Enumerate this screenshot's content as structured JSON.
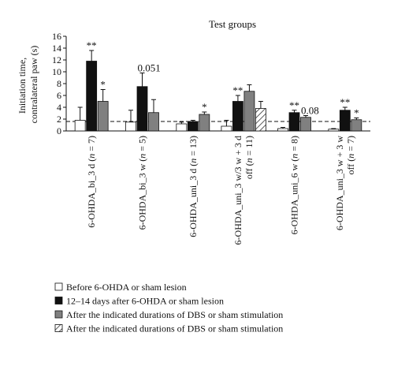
{
  "chart_data": {
    "type": "bar",
    "title": "Test groups",
    "ylabel": "Initiation time,\ncontralateral paw (s)",
    "ylim": [
      0,
      16
    ],
    "yticks": [
      0,
      2,
      4,
      6,
      8,
      10,
      12,
      14,
      16
    ],
    "reference_line": 1.6,
    "categories": [
      "6-OHDA_bi_3 d (n = 7)",
      "6-OHDA_bi_3 w (n = 5)",
      "6-OHDA_uni_3 d (n = 13)",
      "6-OHDA_uni_3 w/3 w + 3 d off (n = 11)",
      "6-OHDA_uni_6 w (n = 8)",
      "6-OHDA_uni_3 w + 3 w off (n = 7)"
    ],
    "series": [
      {
        "name": "Before 6-OHDA or sham lesion",
        "fill": "white",
        "values": [
          1.8,
          1.5,
          1.2,
          0.8,
          0.4,
          0.3
        ],
        "errors": [
          2.2,
          2.0,
          0.3,
          1.0,
          0.2,
          0.1
        ]
      },
      {
        "name": "12–14 days after 6-OHDA or sham lesion",
        "fill": "black",
        "values": [
          11.8,
          7.5,
          1.6,
          5.0,
          3.1,
          3.5
        ],
        "errors": [
          1.8,
          2.3,
          0.2,
          1.0,
          0.4,
          0.5
        ]
      },
      {
        "name": "After the indicated durations of DBS or sham stimulation",
        "fill": "gray",
        "values": [
          5.0,
          3.1,
          2.8,
          6.7,
          2.3,
          1.9
        ],
        "errors": [
          2.0,
          2.2,
          0.4,
          1.1,
          0.3,
          0.3
        ]
      },
      {
        "name": "After the indicated durations of DBS or sham stimulation",
        "fill": "hatched",
        "values": [
          null,
          null,
          null,
          3.8,
          null,
          null
        ],
        "errors": [
          null,
          null,
          null,
          1.2,
          null,
          null
        ]
      }
    ],
    "annotations": [
      {
        "group": 0,
        "series": 1,
        "text": "**"
      },
      {
        "group": 0,
        "series": 2,
        "text": "*"
      },
      {
        "group": 1,
        "series": 1,
        "text": "0.051"
      },
      {
        "group": 2,
        "series": 2,
        "text": "*"
      },
      {
        "group": 3,
        "series": 1,
        "text": "**"
      },
      {
        "group": 4,
        "series": 1,
        "text": "**"
      },
      {
        "group": 4,
        "series": 2,
        "text": "0.08"
      },
      {
        "group": 5,
        "series": 1,
        "text": "**"
      },
      {
        "group": 5,
        "series": 2,
        "text": "*"
      }
    ],
    "colors": {
      "black": "#111111",
      "gray": "#808080",
      "white": "#ffffff"
    }
  }
}
